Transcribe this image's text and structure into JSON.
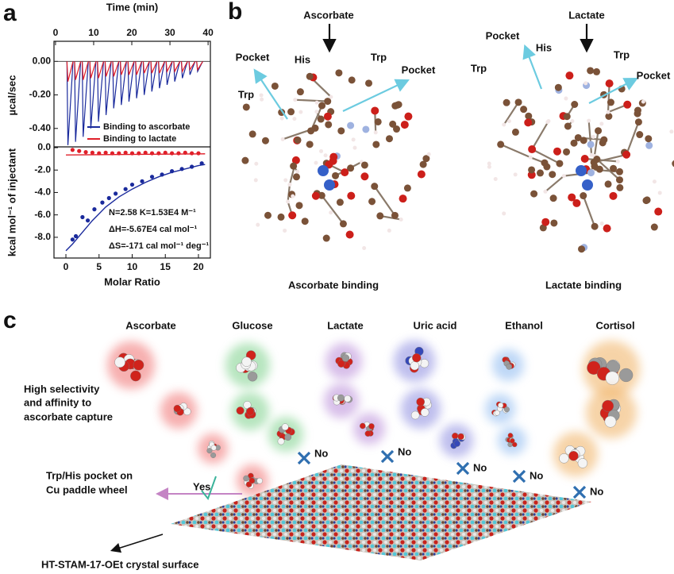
{
  "panel_labels": [
    "a",
    "b",
    "c"
  ],
  "chart_data": [
    {
      "type": "line",
      "xlabel": "Time (min)",
      "ylabel": "µcal/sec",
      "xlim": [
        -0.4,
        40.6
      ],
      "xticks": [
        0,
        10,
        20,
        30,
        40
      ],
      "ylim": [
        -0.51,
        0.12
      ],
      "yticks": [
        {
          "value": 0,
          "label": "0.00"
        },
        {
          "value": -0.2,
          "label": "-0.20"
        },
        {
          "value": -0.4,
          "label": "-0.40"
        }
      ],
      "x": [
        3,
        5,
        7,
        9,
        11,
        13,
        15,
        17,
        19,
        21,
        23,
        25,
        27,
        29,
        31,
        33,
        35,
        37
      ],
      "series": [
        {
          "name": "Binding to ascorbate",
          "color": "#1a2a9c",
          "values": [
            -0.5,
            -0.48,
            -0.45,
            -0.4,
            -0.36,
            -0.32,
            -0.28,
            -0.26,
            -0.24,
            -0.22,
            -0.2,
            -0.18,
            -0.16,
            -0.14,
            -0.12,
            -0.1,
            -0.08,
            -0.06
          ]
        },
        {
          "name": "Binding to lactate",
          "color": "#e0202a",
          "values": [
            -0.12,
            -0.11,
            -0.11,
            -0.1,
            -0.1,
            -0.09,
            -0.09,
            -0.08,
            -0.08,
            -0.08,
            -0.07,
            -0.07,
            -0.07,
            -0.06,
            -0.06,
            -0.06,
            -0.05,
            -0.05
          ]
        }
      ]
    },
    {
      "type": "scatter",
      "xlabel": "Molar Ratio",
      "ylabel": "kcal mol⁻¹ of injectant",
      "xlim": [
        -1.8,
        21.8
      ],
      "xticks": [
        0,
        5,
        10,
        15,
        20
      ],
      "ylim": [
        -9.85,
        0.07
      ],
      "yticks": [
        {
          "value": 0,
          "label": "0.0"
        },
        {
          "value": -2,
          "label": "-2.0"
        },
        {
          "value": -4,
          "label": "-4.0"
        },
        {
          "value": -6,
          "label": "-6.0"
        },
        {
          "value": -8,
          "label": "-8.0"
        }
      ],
      "series": [
        {
          "style": "points",
          "color": "#1a2a9c",
          "x": [
            1,
            1.5,
            2.5,
            3.3,
            4.3,
            5.5,
            6.5,
            7.5,
            9,
            10,
            11.5,
            13,
            14.5,
            16,
            17.5,
            19,
            20.5
          ],
          "values": [
            -8.2,
            -7.9,
            -6.2,
            -6.5,
            -5.5,
            -4.9,
            -4.5,
            -4.1,
            -3.7,
            -3.3,
            -3.0,
            -2.6,
            -2.4,
            -2.1,
            -1.9,
            -1.7,
            -1.4
          ]
        },
        {
          "style": "line",
          "color": "#1a2a9c",
          "x": [
            0,
            1,
            2,
            3,
            4,
            6,
            8,
            10,
            12,
            14,
            16,
            18,
            20,
            21
          ],
          "values": [
            -9.2,
            -8.6,
            -7.9,
            -7.2,
            -6.5,
            -5.3,
            -4.4,
            -3.7,
            -3.1,
            -2.6,
            -2.2,
            -1.9,
            -1.6,
            -1.5
          ]
        },
        {
          "style": "points",
          "color": "#e0202a",
          "x": [
            1,
            2,
            3,
            4,
            5,
            6,
            7,
            8,
            9,
            10,
            11,
            12,
            13,
            14,
            15,
            16,
            17,
            18,
            19,
            20
          ],
          "values": [
            -0.2,
            -0.3,
            -0.4,
            -0.45,
            -0.5,
            -0.45,
            -0.5,
            -0.5,
            -0.45,
            -0.5,
            -0.5,
            -0.45,
            -0.5,
            -0.5,
            -0.45,
            -0.5,
            -0.5,
            -0.45,
            -0.5,
            -0.5
          ]
        },
        {
          "style": "line",
          "color": "#e0202a",
          "x": [
            0,
            21
          ],
          "values": [
            -0.65,
            -0.55
          ]
        }
      ],
      "annotations": [
        "N=2.58   K=1.53E4 M⁻¹",
        "ΔH=-5.67E4 cal mol⁻¹",
        "ΔS=-171 cal mol⁻¹ deg⁻¹"
      ]
    }
  ],
  "panel_b": {
    "left": {
      "substrate": "Ascorbate",
      "labels": [
        "Pocket",
        "His",
        "Trp",
        "Pocket",
        "Trp"
      ],
      "caption": "Ascorbate binding"
    },
    "right": {
      "substrate": "Lactate",
      "labels": [
        "Pocket",
        "His",
        "Trp",
        "Trp",
        "Pocket"
      ],
      "caption": "Lactate binding"
    }
  },
  "panel_c": {
    "molecules": [
      "Ascorbate",
      "Glucose",
      "Lactate",
      "Uric acid",
      "Ethanol",
      "Cortisol"
    ],
    "selectivity": [
      "High selectivity",
      "and affinity to",
      "ascorbate capture"
    ],
    "pocket": [
      "Trp/His pocket on",
      "Cu paddle wheel"
    ],
    "yes": "Yes",
    "no": [
      "No",
      "No",
      "No",
      "No",
      "No"
    ],
    "surface": "HT-STAM-17-OEt crystal surface"
  }
}
